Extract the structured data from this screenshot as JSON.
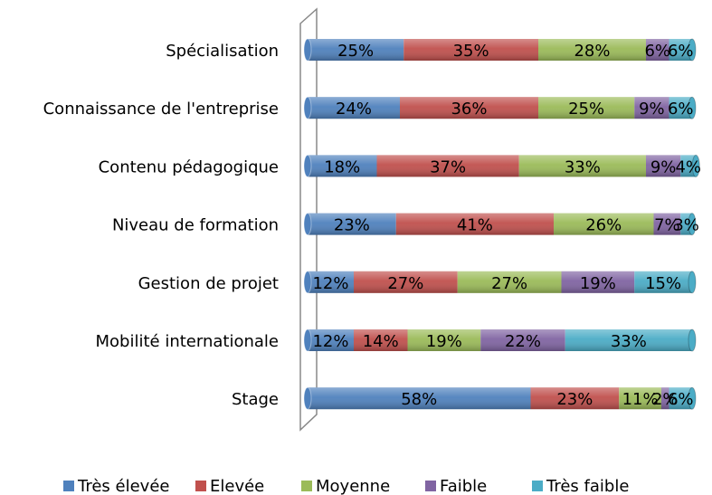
{
  "chart_data": {
    "type": "stacked-barh",
    "categories": [
      "Spécialisation",
      "Connaissance de l'entreprise",
      "Contenu pédagogique",
      "Niveau de formation",
      "Gestion de projet",
      "Mobilité internationale",
      "Stage"
    ],
    "xlim": [
      0,
      100
    ],
    "legend": "bottom",
    "series": [
      {
        "name": "Très élevée",
        "color": "#4f81bd",
        "values": [
          25,
          24,
          18,
          23,
          12,
          12,
          58
        ],
        "value_labels": [
          "25%",
          "24%",
          "18%",
          "23%",
          "12%",
          "12%",
          "58%"
        ]
      },
      {
        "name": "Elevée",
        "color": "#c0504d",
        "values": [
          35,
          36,
          37,
          41,
          27,
          14,
          23
        ],
        "value_labels": [
          "35%",
          "36%",
          "37%",
          "41%",
          "27%",
          "14%",
          "23%"
        ]
      },
      {
        "name": "Moyenne",
        "color": "#9bbb59",
        "values": [
          28,
          25,
          33,
          26,
          27,
          19,
          11
        ],
        "value_labels": [
          "28%",
          "25%",
          "33%",
          "26%",
          "27%",
          "19%",
          "11%"
        ]
      },
      {
        "name": "Faible",
        "color": "#8064a2",
        "values": [
          6,
          9,
          9,
          7,
          19,
          22,
          2
        ],
        "value_labels": [
          "6%",
          "9%",
          "9%",
          "7%",
          "19%",
          "22%",
          "2%"
        ]
      },
      {
        "name": "Très faible",
        "color": "#4bacc6",
        "values": [
          6,
          6,
          4,
          3,
          15,
          33,
          6
        ],
        "value_labels": [
          "6%",
          "6%",
          "4%",
          "3%",
          "15%",
          "33%",
          "6%"
        ]
      }
    ]
  }
}
